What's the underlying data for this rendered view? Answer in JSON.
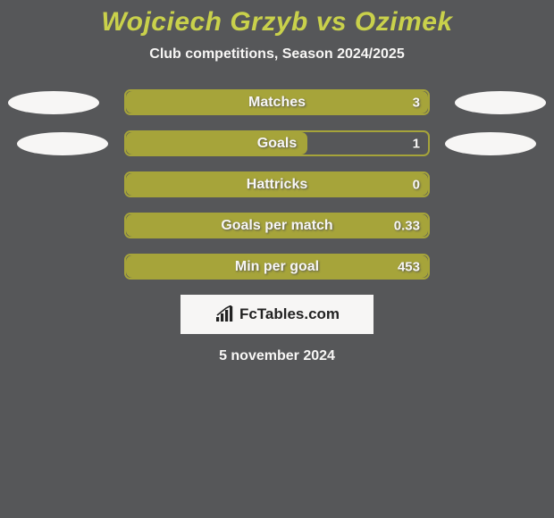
{
  "colors": {
    "background": "#565759",
    "accent": "#c9d14b",
    "olive": "#a6a43a",
    "text_light": "#f7f6f5",
    "text_dark": "#222222",
    "track_border": "#a6a43a",
    "logo_bg": "#f7f6f5",
    "ellipse": "#f7f6f5"
  },
  "title": {
    "text": "Wojciech Grzyb vs Ozimek",
    "fontsize": 30,
    "color_key": "accent"
  },
  "subtitle": {
    "text": "Club competitions, Season 2024/2025",
    "fontsize": 16,
    "color_key": "text_light"
  },
  "bars": {
    "track_width": 342,
    "track_height": 29,
    "label_fontsize": 16,
    "value_fontsize": 15,
    "label_color_key": "text_light",
    "value_color_key": "text_light",
    "border_color_key": "track_border",
    "items": [
      {
        "label": "Matches",
        "value": "3",
        "fill_pct": 100,
        "fill_color": "#a6a43a",
        "left_ellipse": true,
        "right_ellipse": true,
        "ellipse_style": 1
      },
      {
        "label": "Goals",
        "value": "1",
        "fill_pct": 60,
        "fill_color": "#a6a43a",
        "left_ellipse": true,
        "right_ellipse": true,
        "ellipse_style": 2
      },
      {
        "label": "Hattricks",
        "value": "0",
        "fill_pct": 100,
        "fill_color": "#a6a43a",
        "left_ellipse": false,
        "right_ellipse": false
      },
      {
        "label": "Goals per match",
        "value": "0.33",
        "fill_pct": 100,
        "fill_color": "#a6a43a",
        "left_ellipse": false,
        "right_ellipse": false
      },
      {
        "label": "Min per goal",
        "value": "453",
        "fill_pct": 100,
        "fill_color": "#a6a43a",
        "left_ellipse": false,
        "right_ellipse": false
      }
    ]
  },
  "logo": {
    "text": "FcTables.com",
    "fontsize": 17,
    "bg_color_key": "logo_bg",
    "text_color_key": "text_dark"
  },
  "date": {
    "text": "5 november 2024",
    "fontsize": 16,
    "color_key": "text_light"
  }
}
